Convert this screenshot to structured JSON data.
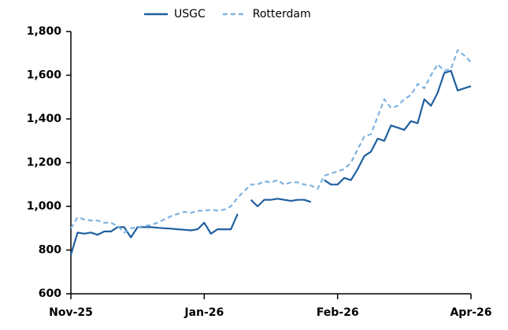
{
  "chart_data": {
    "type": "line",
    "categories": [
      "Nov-25",
      null,
      null,
      null,
      null,
      null,
      null,
      null,
      null,
      null,
      null,
      null,
      null,
      null,
      null,
      null,
      null,
      null,
      null,
      null,
      "Jan-26",
      null,
      null,
      null,
      null,
      null,
      null,
      null,
      null,
      null,
      null,
      null,
      null,
      null,
      null,
      null,
      null,
      null,
      null,
      null,
      "Feb-26",
      null,
      null,
      null,
      null,
      null,
      null,
      null,
      null,
      null,
      null,
      null,
      null,
      null,
      null,
      null,
      null,
      null,
      null,
      null,
      "Apr-26"
    ],
    "series": [
      {
        "name": "USGC",
        "color": "#1f5fa0",
        "dash": false,
        "values": [
          778,
          880,
          875,
          880,
          870,
          885,
          885,
          905,
          905,
          858,
          905,
          905,
          905,
          902,
          900,
          898,
          895,
          893,
          890,
          895,
          925,
          875,
          895,
          895,
          895,
          965,
          null,
          1030,
          1000,
          1030,
          1030,
          1035,
          1030,
          1025,
          1030,
          1030,
          1020,
          null,
          1120,
          1100,
          1100,
          1130,
          1120,
          1170,
          1230,
          1250,
          1310,
          1300,
          1370,
          1360,
          1350,
          1390,
          1380,
          1490,
          1460,
          1520,
          1610,
          1620,
          1530,
          1540,
          1550
        ]
      },
      {
        "name": "Rotterdam",
        "color": "#7fb3e0",
        "dash": true,
        "values": [
          900,
          950,
          940,
          935,
          935,
          925,
          925,
          910,
          880,
          900,
          905,
          910,
          915,
          925,
          940,
          955,
          965,
          975,
          970,
          980,
          980,
          985,
          980,
          985,
          1000,
          1040,
          1070,
          1100,
          1100,
          1115,
          1110,
          1120,
          1100,
          1110,
          1110,
          1100,
          1095,
          1080,
          1140,
          1150,
          1160,
          1170,
          1200,
          1260,
          1320,
          1330,
          1410,
          1490,
          1450,
          1460,
          1490,
          1510,
          1560,
          1540,
          1600,
          1650,
          1620,
          1630,
          1715,
          1690,
          1660
        ]
      }
    ],
    "ylim": [
      600,
      1800
    ],
    "yticks": [
      600,
      800,
      {
        "value": 1000,
        "label": "1,000"
      },
      {
        "value": 1200,
        "label": "1,200"
      },
      {
        "value": 1400,
        "label": "1,400"
      },
      {
        "value": 1600,
        "label": "1,600"
      },
      {
        "value": 1800,
        "label": "1,800"
      }
    ],
    "grid": false,
    "legend": "top"
  }
}
